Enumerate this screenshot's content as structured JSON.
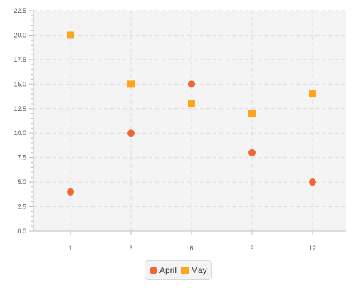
{
  "colors": {
    "plot_background": "#f4f4f4",
    "grid": "#dcdcdc",
    "axis": "#bdbdbd",
    "tick_text": "#555555"
  },
  "chart_data": {
    "type": "scatter",
    "title": "",
    "xlabel": "",
    "ylabel": "",
    "x_categories": [
      1,
      3,
      6,
      9,
      12
    ],
    "xlim": [
      0,
      13.25
    ],
    "ylim": [
      0,
      22.5
    ],
    "y_ticks": [
      "0.0",
      "2.5",
      "5.0",
      "7.5",
      "10.0",
      "12.5",
      "15.0",
      "17.5",
      "20.0",
      "22.5"
    ],
    "x_ticks": [
      "1",
      "3",
      "6",
      "9",
      "12"
    ],
    "grid": true,
    "legend_position": "bottom-center",
    "series": [
      {
        "name": "April",
        "marker": "circle",
        "color": "#f26535",
        "points": [
          {
            "x": 1,
            "y": 4
          },
          {
            "x": 3,
            "y": 10
          },
          {
            "x": 6,
            "y": 15
          },
          {
            "x": 9,
            "y": 8
          },
          {
            "x": 12,
            "y": 5
          }
        ]
      },
      {
        "name": "May",
        "marker": "square",
        "color": "#ffa51c",
        "points": [
          {
            "x": 1,
            "y": 20
          },
          {
            "x": 3,
            "y": 15
          },
          {
            "x": 6,
            "y": 13
          },
          {
            "x": 9,
            "y": 12
          },
          {
            "x": 12,
            "y": 14
          }
        ]
      }
    ]
  }
}
